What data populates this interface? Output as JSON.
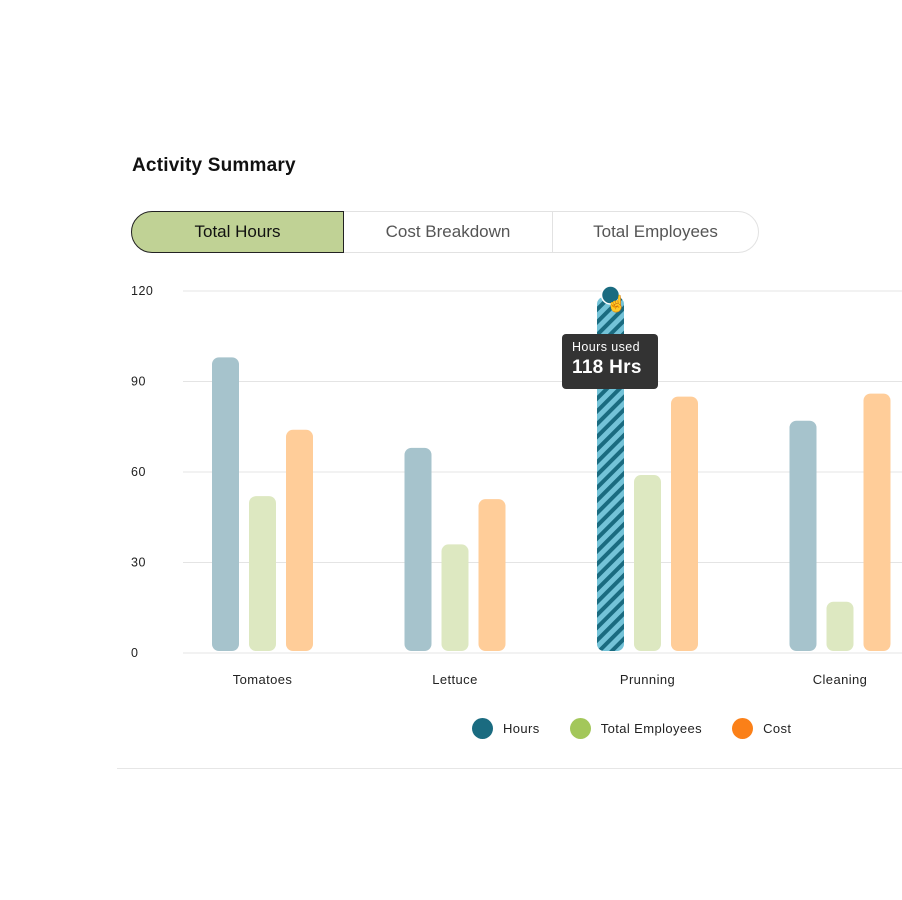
{
  "title": "Activity Summary",
  "tabs": [
    {
      "label": "Total Hours",
      "active": true
    },
    {
      "label": "Cost Breakdown",
      "active": false
    },
    {
      "label": "Total Employees",
      "active": false
    }
  ],
  "tooltip": {
    "label": "Hours used",
    "value": "118 Hrs"
  },
  "chart_data": {
    "type": "bar",
    "categories": [
      "Tomatoes",
      "Lettuce",
      "Prunning",
      "Cleaning"
    ],
    "series": [
      {
        "name": "Hours",
        "values": [
          98,
          68,
          118,
          77
        ],
        "color": "#1a6b80",
        "bar_color": "#a6c3cc"
      },
      {
        "name": "Total Employees",
        "values": [
          52,
          36,
          59,
          17
        ],
        "color": "#a3c75a",
        "bar_color": "#dde8c1"
      },
      {
        "name": "Cost",
        "values": [
          74,
          51,
          85,
          86
        ],
        "color": "#fb8018",
        "bar_color": "#ffcd99"
      }
    ],
    "ylim": [
      0,
      120
    ],
    "yticks": [
      0,
      30,
      60,
      90,
      120
    ],
    "grid": true,
    "highlighted": {
      "category": "Prunning",
      "series": "Hours"
    },
    "legend_position": "bottom"
  }
}
